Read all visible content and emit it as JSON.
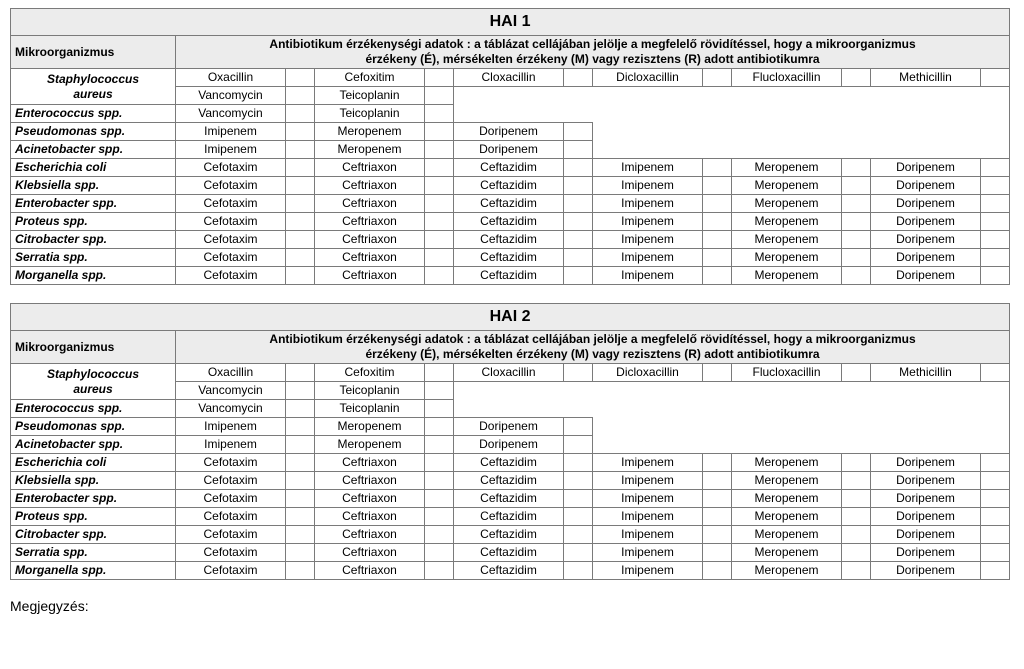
{
  "colors": {
    "header_bg": "#ececec",
    "border": "#7a7a7a",
    "page_bg": "#ffffff",
    "text": "#000000"
  },
  "footer": "Megjegyzés:",
  "common": {
    "col_header_org": "Mikroorganizmus",
    "col_header_desc_line1": "Antibiotikum  érzékenységi adatok : a táblázat cellájában jelölje a megfelelő rövidítéssel, hogy a mikroorganizmus",
    "col_header_desc_line2": "érzékeny (É), mérsékelten érzékeny (M) vagy rezisztens (R) adott antibiotikumra"
  },
  "tables": [
    {
      "title": "HAI 1"
    },
    {
      "title": "HAI 2"
    }
  ],
  "organisms": {
    "staph": "Staphylococcus aureus",
    "entero": "Enterococcus spp.",
    "pseudo": "Pseudomonas spp.",
    "acineto": "Acinetobacter spp.",
    "ecoli": "Escherichia coli",
    "klebs": "Klebsiella spp.",
    "enterobacter": "Enterobacter spp.",
    "proteus": "Proteus spp.",
    "citro": "Citrobacter spp.",
    "serratia": "Serratia spp.",
    "morganella": "Morganella spp."
  },
  "antibiotics": {
    "oxacillin": "Oxacillin",
    "cefoxitim": "Cefoxitim",
    "cloxacillin": "Cloxacillin",
    "dicloxacillin": "Dicloxacillin",
    "flucloxacillin": "Flucloxacillin",
    "methicillin": "Methicillin",
    "vancomycin": "Vancomycin",
    "teicoplanin": "Teicoplanin",
    "imipenem": "Imipenem",
    "meropenem": "Meropenem",
    "doripenem": "Doripenem",
    "cefotaxim": "Cefotaxim",
    "ceftriaxon": "Ceftriaxon",
    "ceftazidim": "Ceftazidim"
  },
  "layout": {
    "six_ab_set": [
      "oxacillin",
      "cefoxitim",
      "cloxacillin",
      "dicloxacillin",
      "flucloxacillin",
      "methicillin"
    ],
    "two_ab_set": [
      "vancomycin",
      "teicoplanin"
    ],
    "three_ab_set": [
      "imipenem",
      "meropenem",
      "doripenem"
    ],
    "cef_set": [
      "cefotaxim",
      "ceftriaxon",
      "ceftazidim",
      "imipenem",
      "meropenem",
      "doripenem"
    ],
    "cef_rows": [
      "ecoli",
      "klebs",
      "enterobacter",
      "proteus",
      "citro",
      "serratia",
      "morganella"
    ]
  }
}
